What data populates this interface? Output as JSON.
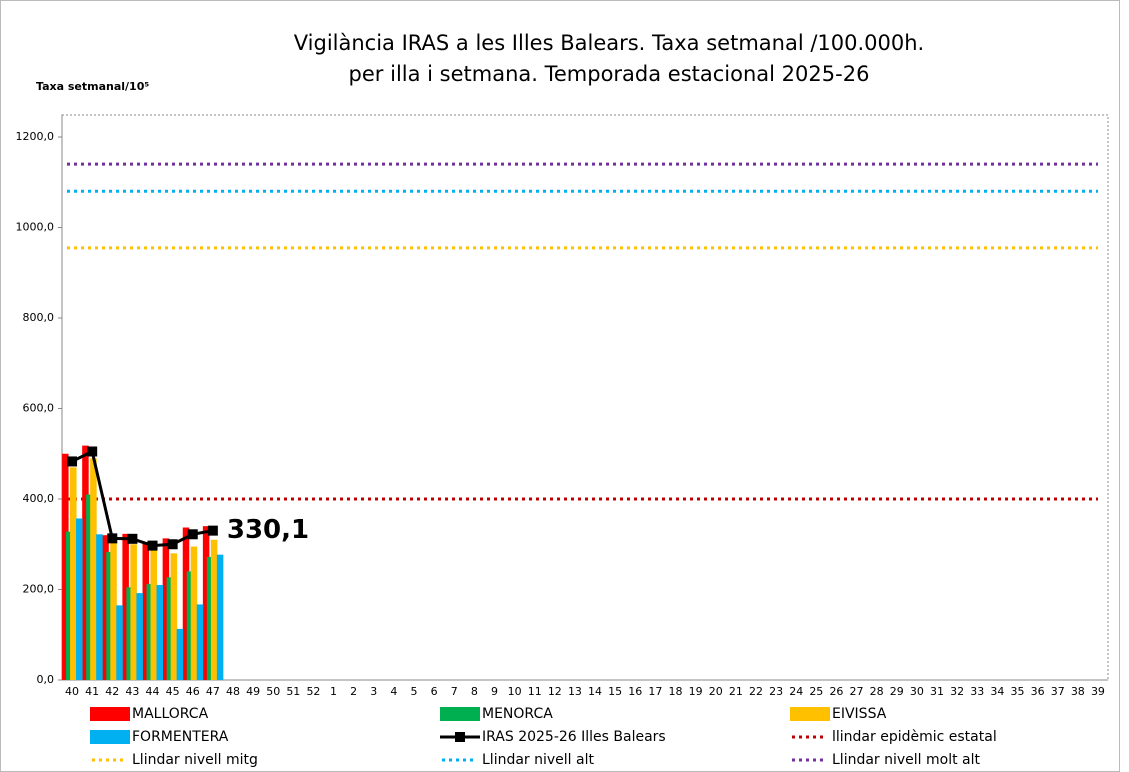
{
  "chart_data": {
    "type": "bar-line",
    "title": [
      "Vigilància IRAS a les Illes Balears.  Taxa setmanal /100.000h.",
      "per illa i setmana. Temporada estacional 2025-26"
    ],
    "y_axis_label": "Taxa setmanal/10⁵",
    "categories": [
      "40",
      "41",
      "42",
      "43",
      "44",
      "45",
      "46",
      "47",
      "48",
      "49",
      "50",
      "51",
      "52",
      "1",
      "2",
      "3",
      "4",
      "5",
      "6",
      "7",
      "8",
      "9",
      "10",
      "11",
      "12",
      "13",
      "14",
      "15",
      "16",
      "17",
      "18",
      "19",
      "20",
      "21",
      "22",
      "23",
      "24",
      "25",
      "26",
      "27",
      "28",
      "29",
      "30",
      "31",
      "32",
      "33",
      "34",
      "35",
      "36",
      "37",
      "38",
      "39"
    ],
    "ylim": [
      0,
      1200
    ],
    "yticks": [
      {
        "value": 0,
        "label": "0,0"
      },
      {
        "value": 200,
        "label": "200,0"
      },
      {
        "value": 400,
        "label": "400,0"
      },
      {
        "value": 600,
        "label": "600,0"
      },
      {
        "value": 800,
        "label": "800,0"
      },
      {
        "value": 1000,
        "label": "1000,0"
      },
      {
        "value": 1200,
        "label": "1200,0"
      }
    ],
    "series": [
      {
        "name": "MALLORCA",
        "type": "bar",
        "color": "#ff0000",
        "values": [
          500,
          518,
          320,
          323,
          305,
          313,
          337,
          340,
          null,
          null,
          null,
          null,
          null,
          null,
          null,
          null,
          null,
          null,
          null,
          null,
          null,
          null,
          null,
          null,
          null,
          null,
          null,
          null,
          null,
          null,
          null,
          null,
          null,
          null,
          null,
          null,
          null,
          null,
          null,
          null,
          null,
          null,
          null,
          null,
          null,
          null,
          null,
          null,
          null,
          null,
          null,
          null
        ]
      },
      {
        "name": "MENORCA",
        "type": "bar",
        "color": "#00b050",
        "values": [
          328,
          410,
          283,
          205,
          212,
          227,
          240,
          272,
          null,
          null,
          null,
          null,
          null,
          null,
          null,
          null,
          null,
          null,
          null,
          null,
          null,
          null,
          null,
          null,
          null,
          null,
          null,
          null,
          null,
          null,
          null,
          null,
          null,
          null,
          null,
          null,
          null,
          null,
          null,
          null,
          null,
          null,
          null,
          null,
          null,
          null,
          null,
          null,
          null,
          null,
          null,
          null
        ]
      },
      {
        "name": "EIVISSA",
        "type": "bar",
        "color": "#ffc000",
        "values": [
          470,
          490,
          310,
          300,
          295,
          280,
          295,
          310,
          null,
          null,
          null,
          null,
          null,
          null,
          null,
          null,
          null,
          null,
          null,
          null,
          null,
          null,
          null,
          null,
          null,
          null,
          null,
          null,
          null,
          null,
          null,
          null,
          null,
          null,
          null,
          null,
          null,
          null,
          null,
          null,
          null,
          null,
          null,
          null,
          null,
          null,
          null,
          null,
          null,
          null,
          null,
          null
        ]
      },
      {
        "name": "FORMENTERA",
        "type": "bar",
        "color": "#00b0f0",
        "values": [
          357,
          322,
          165,
          192,
          210,
          113,
          167,
          277,
          null,
          null,
          null,
          null,
          null,
          null,
          null,
          null,
          null,
          null,
          null,
          null,
          null,
          null,
          null,
          null,
          null,
          null,
          null,
          null,
          null,
          null,
          null,
          null,
          null,
          null,
          null,
          null,
          null,
          null,
          null,
          null,
          null,
          null,
          null,
          null,
          null,
          null,
          null,
          null,
          null,
          null,
          null,
          null
        ]
      },
      {
        "name": "IRAS 2025-26 Illes Balears",
        "type": "line",
        "color": "#000000",
        "values": [
          483,
          505,
          313,
          312,
          297,
          300,
          322,
          330.1,
          null,
          null,
          null,
          null,
          null,
          null,
          null,
          null,
          null,
          null,
          null,
          null,
          null,
          null,
          null,
          null,
          null,
          null,
          null,
          null,
          null,
          null,
          null,
          null,
          null,
          null,
          null,
          null,
          null,
          null,
          null,
          null,
          null,
          null,
          null,
          null,
          null,
          null,
          null,
          null,
          null,
          null,
          null,
          null
        ],
        "value_labels": [
          null,
          null,
          null,
          null,
          null,
          null,
          null,
          "330,1",
          null,
          null,
          null,
          null,
          null,
          null,
          null,
          null,
          null,
          null,
          null,
          null,
          null,
          null,
          null,
          null,
          null,
          null,
          null,
          null,
          null,
          null,
          null,
          null,
          null,
          null,
          null,
          null,
          null,
          null,
          null,
          null,
          null,
          null,
          null,
          null,
          null,
          null,
          null,
          null,
          null,
          null,
          null,
          null
        ]
      }
    ],
    "threshold_lines": [
      {
        "name": "llindar epidèmic estatal",
        "color": "#c00000",
        "value": 400
      },
      {
        "name": "Llindar nivell mitg",
        "color": "#ffc000",
        "value": 955
      },
      {
        "name": "Llindar nivell alt",
        "color": "#00b0f0",
        "value": 1080
      },
      {
        "name": "Llindar nivell molt alt",
        "color": "#7030a0",
        "value": 1140
      }
    ]
  }
}
